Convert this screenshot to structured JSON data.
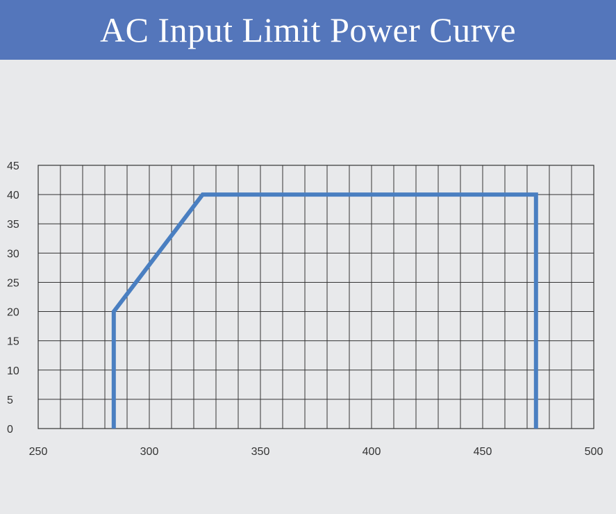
{
  "header": {
    "title": "AC Input Limit Power Curve"
  },
  "chart_data": {
    "type": "line",
    "title": "AC Input Limit Power Curve",
    "xlabel": "",
    "ylabel": "",
    "xlim": [
      250,
      500
    ],
    "ylim": [
      0,
      45
    ],
    "x_ticks": [
      250,
      300,
      350,
      400,
      450,
      500
    ],
    "y_ticks": [
      0,
      5,
      10,
      15,
      20,
      25,
      30,
      35,
      40,
      45
    ],
    "grid": true,
    "series": [
      {
        "x": [
          284,
          284,
          324,
          474,
          474
        ],
        "y": [
          0,
          20,
          40,
          40,
          0
        ]
      }
    ],
    "colors": {
      "line": "#4a7fc1",
      "grid": "#333333",
      "header": "#5476bb"
    }
  }
}
